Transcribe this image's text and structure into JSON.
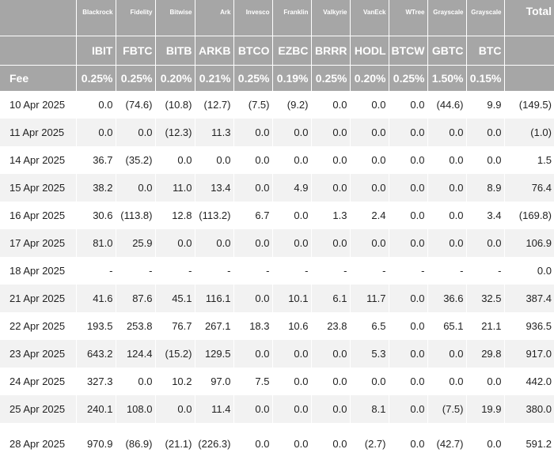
{
  "issuers": [
    "Blackrock",
    "Fidelity",
    "Bitwise",
    "Ark",
    "Invesco",
    "Franklin",
    "Valkyrie",
    "VanEck",
    "WTree",
    "Grayscale",
    "Grayscale"
  ],
  "total_label": "Total",
  "tickers": [
    "IBIT",
    "FBTC",
    "BITB",
    "ARKB",
    "BTCO",
    "EZBC",
    "BRRR",
    "HODL",
    "BTCW",
    "GBTC",
    "BTC"
  ],
  "fee_label": "Fee",
  "fees": [
    "0.25%",
    "0.25%",
    "0.20%",
    "0.21%",
    "0.25%",
    "0.19%",
    "0.25%",
    "0.20%",
    "0.25%",
    "1.50%",
    "0.15%"
  ],
  "rows": [
    {
      "date": "10 Apr 2025",
      "values": [
        "0.0",
        "(74.6)",
        "(10.8)",
        "(12.7)",
        "(7.5)",
        "(9.2)",
        "0.0",
        "0.0",
        "0.0",
        "(44.6)",
        "9.9"
      ],
      "total": "(149.5)"
    },
    {
      "date": "11 Apr 2025",
      "values": [
        "0.0",
        "0.0",
        "(12.3)",
        "11.3",
        "0.0",
        "0.0",
        "0.0",
        "0.0",
        "0.0",
        "0.0",
        "0.0"
      ],
      "total": "(1.0)"
    },
    {
      "date": "14 Apr 2025",
      "values": [
        "36.7",
        "(35.2)",
        "0.0",
        "0.0",
        "0.0",
        "0.0",
        "0.0",
        "0.0",
        "0.0",
        "0.0",
        "0.0"
      ],
      "total": "1.5"
    },
    {
      "date": "15 Apr 2025",
      "values": [
        "38.2",
        "0.0",
        "11.0",
        "13.4",
        "0.0",
        "4.9",
        "0.0",
        "0.0",
        "0.0",
        "0.0",
        "8.9"
      ],
      "total": "76.4"
    },
    {
      "date": "16 Apr 2025",
      "values": [
        "30.6",
        "(113.8)",
        "12.8",
        "(113.2)",
        "6.7",
        "0.0",
        "1.3",
        "2.4",
        "0.0",
        "0.0",
        "3.4"
      ],
      "total": "(169.8)"
    },
    {
      "date": "17 Apr 2025",
      "values": [
        "81.0",
        "25.9",
        "0.0",
        "0.0",
        "0.0",
        "0.0",
        "0.0",
        "0.0",
        "0.0",
        "0.0",
        "0.0"
      ],
      "total": "106.9"
    },
    {
      "date": "18 Apr 2025",
      "values": [
        "-",
        "-",
        "-",
        "-",
        "-",
        "-",
        "-",
        "-",
        "-",
        "-",
        "-"
      ],
      "total": "0.0"
    },
    {
      "date": "21 Apr 2025",
      "values": [
        "41.6",
        "87.6",
        "45.1",
        "116.1",
        "0.0",
        "10.1",
        "6.1",
        "11.7",
        "0.0",
        "36.6",
        "32.5"
      ],
      "total": "387.4"
    },
    {
      "date": "22 Apr 2025",
      "values": [
        "193.5",
        "253.8",
        "76.7",
        "267.1",
        "18.3",
        "10.6",
        "23.8",
        "6.5",
        "0.0",
        "65.1",
        "21.1"
      ],
      "total": "936.5"
    },
    {
      "date": "23 Apr 2025",
      "values": [
        "643.2",
        "124.4",
        "(15.2)",
        "129.5",
        "0.0",
        "0.0",
        "0.0",
        "5.3",
        "0.0",
        "0.0",
        "29.8"
      ],
      "total": "917.0"
    },
    {
      "date": "24 Apr 2025",
      "values": [
        "327.3",
        "0.0",
        "10.2",
        "97.0",
        "7.5",
        "0.0",
        "0.0",
        "0.0",
        "0.0",
        "0.0",
        "0.0"
      ],
      "total": "442.0"
    },
    {
      "date": "25 Apr 2025",
      "values": [
        "240.1",
        "108.0",
        "0.0",
        "11.4",
        "0.0",
        "0.0",
        "0.0",
        "8.1",
        "0.0",
        "(7.5)",
        "19.9"
      ],
      "total": "380.0"
    },
    {
      "date": "28 Apr 2025",
      "values": [
        "970.9",
        "(86.9)",
        "(21.1)",
        "(226.3)",
        "0.0",
        "0.0",
        "0.0",
        "(2.7)",
        "0.0",
        "(42.7)",
        "0.0"
      ],
      "total": "591.2"
    }
  ],
  "colors": {
    "header_bg": "#a6a6a6",
    "header_text": "#ffffff",
    "row_alt": "#f2f2f2",
    "negative": "#ff2a2a"
  }
}
